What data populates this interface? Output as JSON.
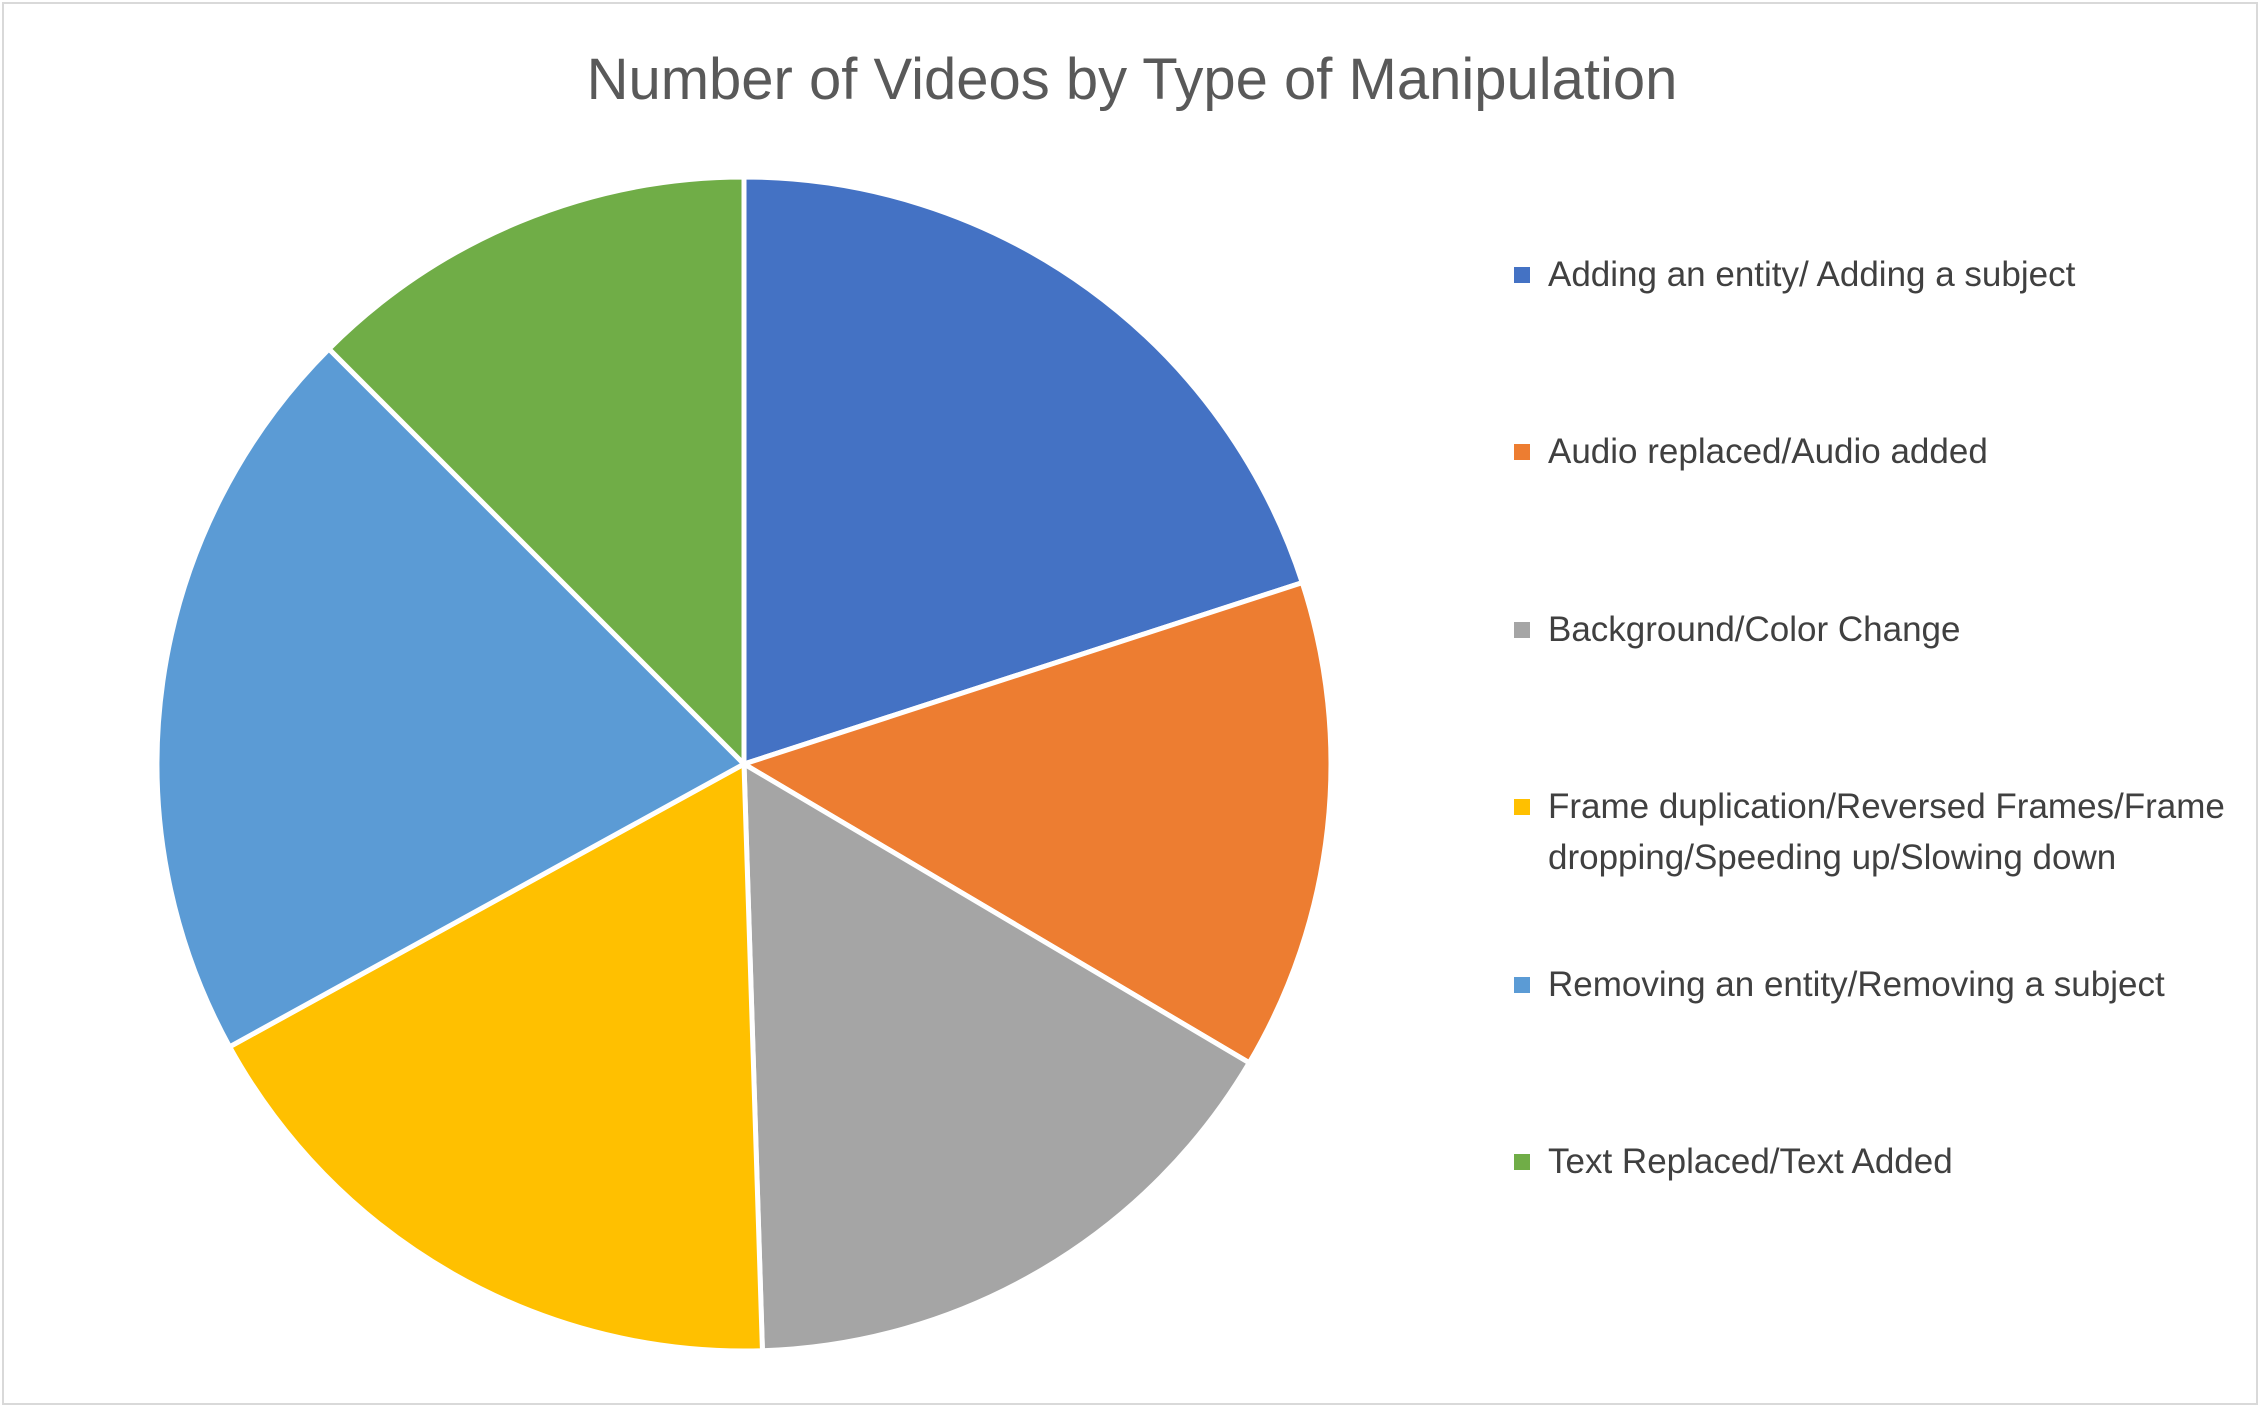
{
  "chart_data": {
    "type": "pie",
    "title": "Number of Videos by Type of Manipulation",
    "categories": [
      "Adding an entity/ Adding a subject",
      "Audio replaced/Audio added",
      "Background/Color Change",
      "Frame duplication/Reversed Frames/Frame dropping/Speeding up/Slowing down",
      "Removing an entity/Removing a subject",
      "Text Replaced/Text Added"
    ],
    "values": [
      20,
      13.5,
      16,
      17.5,
      20.5,
      12.5
    ],
    "colors": [
      "#4472C4",
      "#ED7D31",
      "#A5A5A5",
      "#FFC000",
      "#5B9BD5",
      "#70AD47"
    ],
    "legend_position": "right"
  }
}
